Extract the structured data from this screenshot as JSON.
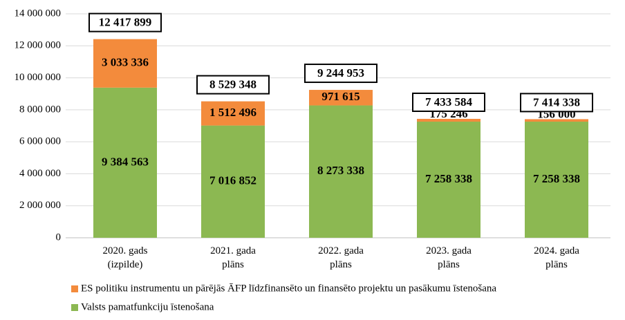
{
  "chart_data": {
    "type": "stacked_bar",
    "categories": [
      "2020. gads\n(izpilde)",
      "2021. gada\nplāns",
      "2022. gada\nplāns",
      "2023. gada\nplāns",
      "2024. gada\nplāns"
    ],
    "series": [
      {
        "name": "Valsts pamatfunkciju īstenošana",
        "color": "#8cb852",
        "values": [
          9384563,
          7016852,
          8273338,
          7258338,
          7258338
        ],
        "value_labels": [
          "9 384 563",
          "7 016 852",
          "8 273 338",
          "7 258 338",
          "7 258 338"
        ]
      },
      {
        "name": "ES politiku instrumentu un pārējās ĀFP līdzfinansēto un finansēto projektu un pasākumu īstenošana",
        "color": "#f38b3c",
        "values": [
          3033336,
          1512496,
          971615,
          175246,
          156000
        ],
        "value_labels": [
          "3 033 336",
          "1 512 496",
          "971 615",
          "175 246",
          "156 000"
        ]
      }
    ],
    "totals": [
      12417899,
      8529348,
      9244953,
      7433584,
      7414338
    ],
    "total_labels": [
      "12 417 899",
      "8 529 348",
      "9 244 953",
      "7 433 584",
      "7 414 338"
    ],
    "ylim": [
      0,
      14000000
    ],
    "yticks": [
      0,
      {
        "value": 2000000,
        "label": "2 000 000"
      },
      {
        "value": 4000000,
        "label": "4 000 000"
      },
      {
        "value": 6000000,
        "label": "6 000 000"
      },
      {
        "value": 8000000,
        "label": "8 000 000"
      },
      {
        "value": 10000000,
        "label": "10 000 000"
      },
      {
        "value": 12000000,
        "label": "12 000 000"
      },
      {
        "value": 14000000,
        "label": "14 000 000"
      }
    ],
    "grid": true
  }
}
